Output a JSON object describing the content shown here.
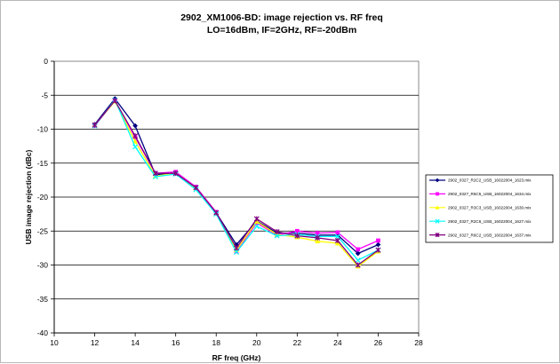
{
  "chart_data": {
    "type": "line",
    "title": [
      "2902_XM1006-BD: image rejection vs. RF freq",
      "LO=16dBm, IF=2GHz, RF=-20dBm"
    ],
    "xlabel": "RF freq (GHz)",
    "ylabel": "USB image rejection (dBc)",
    "xlim": [
      10,
      28
    ],
    "ylim": [
      -40,
      0
    ],
    "xticks": [
      10,
      12,
      14,
      16,
      18,
      20,
      22,
      24,
      26,
      28
    ],
    "yticks": [
      0,
      -5,
      -10,
      -15,
      -20,
      -25,
      -30,
      -35,
      -40
    ],
    "grid": "horizontal",
    "legend_position": "right",
    "x": [
      12,
      13,
      14,
      15,
      16,
      17,
      18,
      19,
      20,
      21,
      22,
      23,
      24,
      25,
      26
    ],
    "series": [
      {
        "name": "2902_0327_R2C2_USB_16022004_1623.mix",
        "color": "#000080",
        "marker": "diamond",
        "values": [
          -9.3,
          -5.5,
          -9.5,
          -16.7,
          -16.4,
          -18.6,
          -22.3,
          -27.0,
          -23.5,
          -25.3,
          -25.3,
          -25.6,
          -25.6,
          -28.3,
          -27.0
        ]
      },
      {
        "name": "2902_0327_R5C5_USB_16022004_1634.mix",
        "color": "#ff00ff",
        "marker": "square",
        "values": [
          -9.5,
          -5.8,
          -11.2,
          -16.5,
          -16.3,
          -18.5,
          -22.2,
          -28.0,
          -23.8,
          -25.6,
          -25.0,
          -25.3,
          -25.2,
          -27.7,
          -26.4
        ]
      },
      {
        "name": "2902_0327_R3C3_USB_16022004_1630.mix",
        "color": "#ffff00",
        "marker": "triangle",
        "values": [
          -9.4,
          -5.9,
          -11.8,
          -16.9,
          -16.5,
          -18.7,
          -22.4,
          -27.8,
          -23.6,
          -25.5,
          -25.9,
          -26.5,
          -26.8,
          -30.2,
          -28.0
        ]
      },
      {
        "name": "2902_0327_R2C6_USB_16022004_1627.mix",
        "color": "#00ffff",
        "marker": "x",
        "values": [
          -9.5,
          -5.7,
          -12.6,
          -17.0,
          -16.6,
          -18.9,
          -22.5,
          -28.1,
          -24.3,
          -25.7,
          -25.5,
          -25.8,
          -25.8,
          -29.3,
          -27.8
        ]
      },
      {
        "name": "2902_0327_R6C2_USB_16022004_1637.mix",
        "color": "#800080",
        "marker": "star",
        "values": [
          -9.4,
          -5.8,
          -11.0,
          -16.5,
          -16.5,
          -18.6,
          -22.3,
          -27.5,
          -23.2,
          -25.1,
          -25.7,
          -26.0,
          -26.4,
          -30.0,
          -27.8
        ]
      }
    ]
  }
}
